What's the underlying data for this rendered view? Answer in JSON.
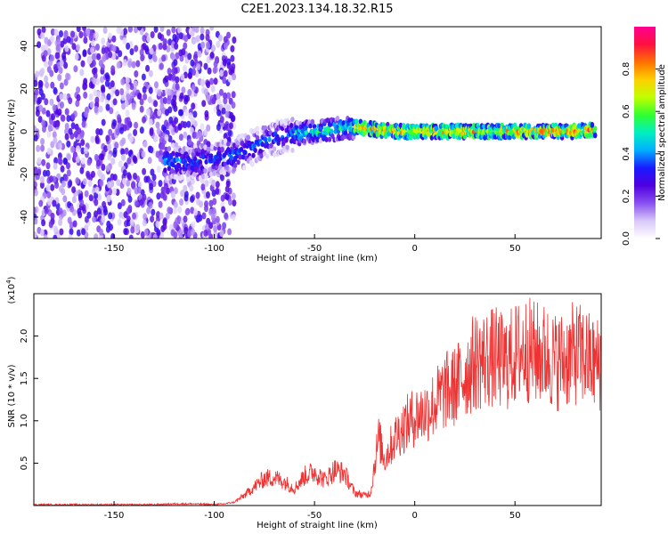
{
  "title": "C2E1.2023.134.18.32.R15",
  "chart_data": [
    {
      "type": "heatmap",
      "xlabel": "Height of straight line (km)",
      "ylabel": "Frequency (Hz)",
      "xlim": [
        -190,
        93
      ],
      "ylim": [
        -50,
        49
      ],
      "x_ticks": [
        -150,
        -100,
        -50,
        0,
        50
      ],
      "y_ticks": [
        -40,
        -20,
        0,
        20,
        40
      ],
      "colorbar": {
        "label": "Normalized spectral amplitude",
        "range": [
          0,
          1
        ],
        "ticks": [
          "0.0",
          "0.2",
          "0.4",
          "0.6",
          "0.8"
        ],
        "colors": [
          "#ffffff",
          "#d8c8f8",
          "#8a50f0",
          "#5000e0",
          "#1a1aff",
          "#00b0ff",
          "#00f0c0",
          "#30ff30",
          "#c0ff00",
          "#ffd000",
          "#ff7000",
          "#ff1040",
          "#ff0090"
        ]
      },
      "ridge": {
        "x": [
          -125,
          -110,
          -100,
          -90,
          -80,
          -70,
          -60,
          -50,
          -40,
          -30,
          -20,
          -10,
          0,
          10,
          20,
          30,
          40,
          50,
          60,
          70,
          80,
          90
        ],
        "frequency": [
          -14,
          -14,
          -13,
          -11,
          -7,
          -3,
          -1,
          0,
          1,
          2,
          1,
          0,
          0,
          0,
          0,
          0,
          0,
          0,
          0,
          0,
          0,
          1
        ]
      },
      "noise_region": {
        "x_from": -190,
        "x_to": -90,
        "frequency_from": -50,
        "frequency_to": 49
      }
    },
    {
      "type": "line",
      "xlabel": "Height of straight line (km)",
      "ylabel": "SNR (10 * v/v)",
      "yscale_label": "(x10",
      "yscale_exp": "4",
      "yscale_close": ")",
      "xlim": [
        -190,
        93
      ],
      "ylim": [
        0,
        2.5
      ],
      "x_ticks": [
        -150,
        -100,
        -50,
        0,
        50
      ],
      "y_ticks": [
        "0.5",
        "1.0",
        "1.5",
        "2.0"
      ],
      "color": "#ee3333",
      "x": [
        -190,
        -180,
        -170,
        -160,
        -150,
        -140,
        -130,
        -120,
        -110,
        -100,
        -95,
        -90,
        -85,
        -80,
        -75,
        -70,
        -65,
        -60,
        -55,
        -50,
        -45,
        -40,
        -35,
        -30,
        -25,
        -22,
        -20,
        -18,
        -15,
        -10,
        -5,
        0,
        5,
        10,
        15,
        20,
        25,
        30,
        35,
        40,
        45,
        50,
        55,
        60,
        65,
        70,
        75,
        80,
        85,
        90,
        93
      ],
      "y": [
        0.01,
        0.01,
        0.01,
        0.01,
        0.01,
        0.01,
        0.01,
        0.02,
        0.02,
        0.01,
        0.02,
        0.04,
        0.12,
        0.22,
        0.32,
        0.33,
        0.28,
        0.2,
        0.35,
        0.4,
        0.3,
        0.42,
        0.38,
        0.15,
        0.12,
        0.15,
        0.5,
        0.8,
        0.55,
        0.8,
        0.95,
        1.05,
        1.1,
        1.2,
        1.35,
        1.4,
        1.55,
        1.7,
        1.72,
        1.75,
        1.68,
        1.78,
        1.85,
        1.8,
        1.78,
        1.7,
        1.72,
        1.8,
        1.75,
        1.65,
        1.7
      ]
    }
  ]
}
